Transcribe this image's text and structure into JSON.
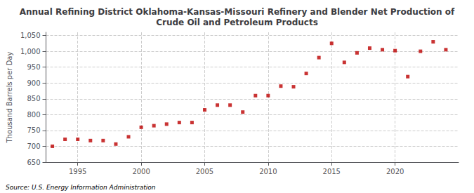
{
  "chart_data": {
    "type": "scatter",
    "title": "Annual Refining District Oklahoma-Kansas-Missouri Refinery and Blender Net Production of\nCrude Oil and Petroleum Products",
    "ylabel": "Thousand Barrels per Day",
    "source": "Source: U.S. Energy Information Administration",
    "color": "#bb0000",
    "marker": "square",
    "x": [
      1993,
      1994,
      1995,
      1996,
      1997,
      1998,
      1999,
      2000,
      2001,
      2002,
      2003,
      2004,
      2005,
      2006,
      2007,
      2008,
      2009,
      2010,
      2011,
      2012,
      2013,
      2014,
      2015,
      2016,
      2017,
      2018,
      2019,
      2020,
      2021,
      2022,
      2023,
      2024
    ],
    "values": [
      700,
      722,
      722,
      718,
      718,
      707,
      730,
      760,
      765,
      770,
      775,
      775,
      815,
      830,
      830,
      808,
      860,
      860,
      890,
      888,
      930,
      980,
      1025,
      965,
      995,
      1010,
      1005,
      1002,
      920,
      1000,
      1030,
      1005
    ],
    "xlim": [
      1992.5,
      2025
    ],
    "xticks": [
      1995,
      2000,
      2005,
      2010,
      2015,
      2020
    ],
    "ylim": [
      650,
      1060
    ],
    "yticks": [
      650,
      700,
      750,
      800,
      850,
      900,
      950,
      {
        "value": 1000,
        "label": "1,000"
      },
      {
        "value": 1050,
        "label": "1,050"
      }
    ],
    "grid": true
  }
}
